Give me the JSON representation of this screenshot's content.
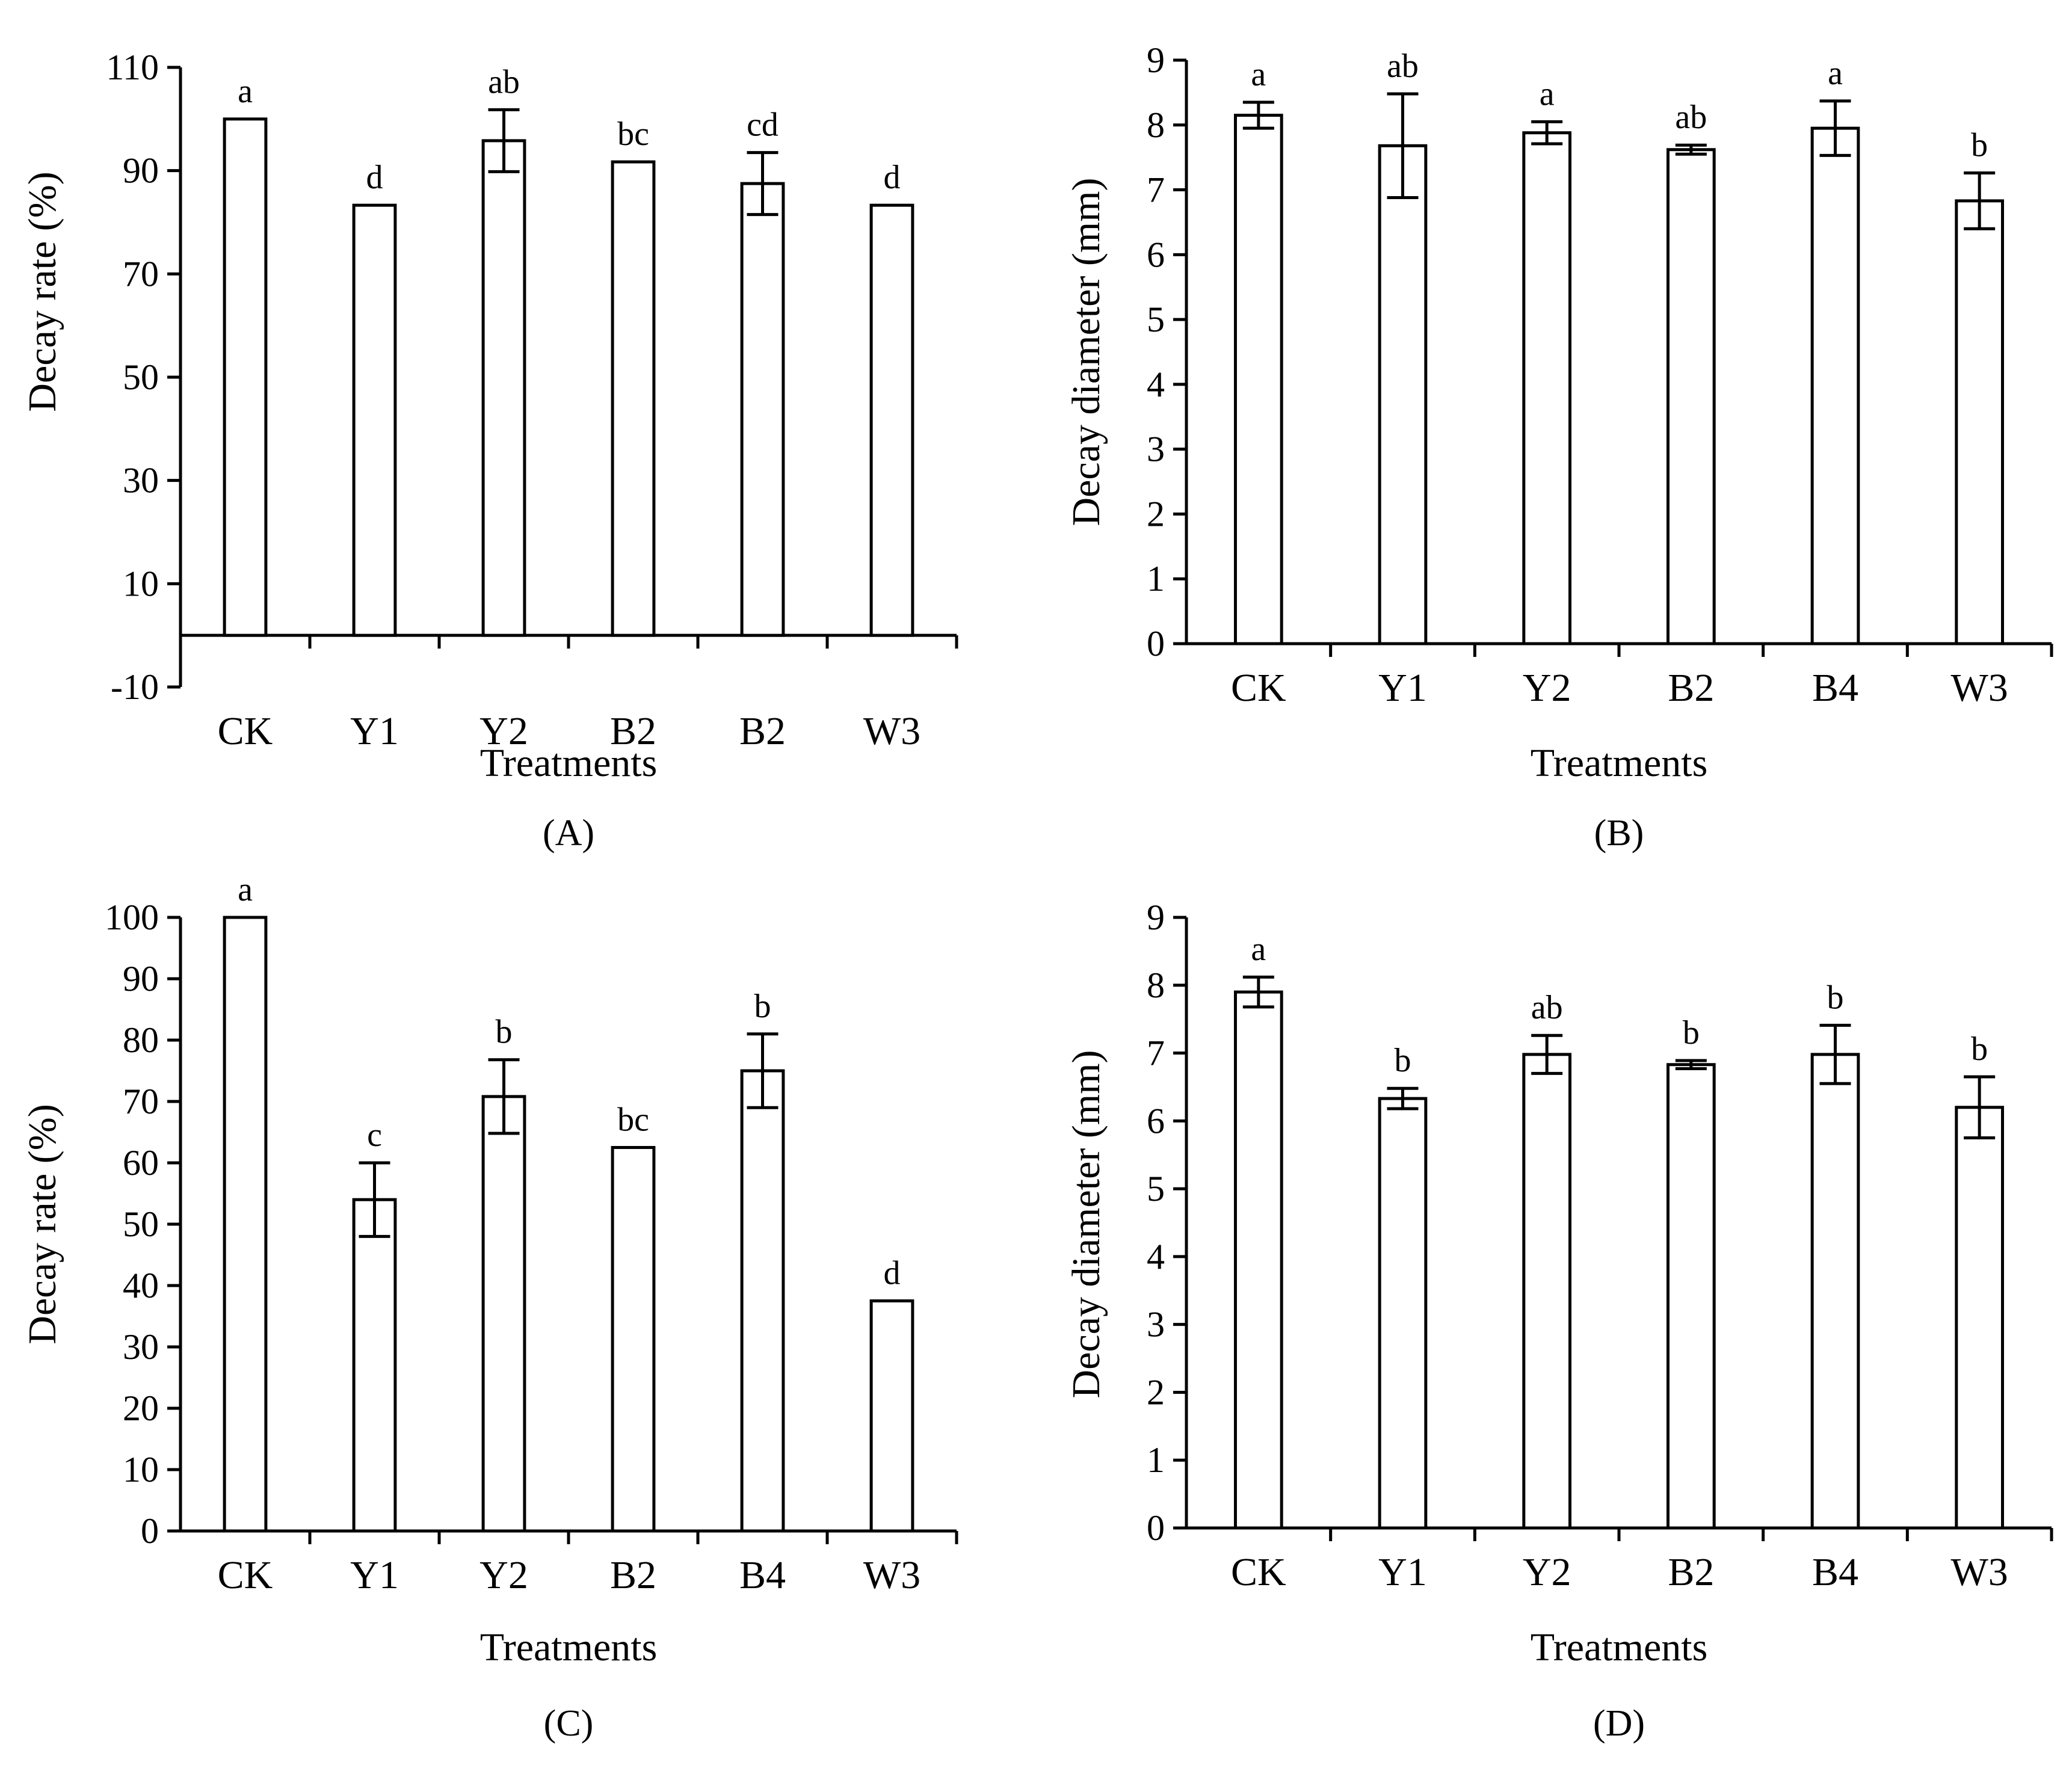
{
  "chart_data": [
    {
      "panel": "A",
      "panel_label": "(A)",
      "type": "bar",
      "title": "",
      "xlabel": "Treatments",
      "ylabel": "Decay rate (%)",
      "categories": [
        "CK",
        "Y1",
        "Y2",
        "B2",
        "B2",
        "W3"
      ],
      "series": [
        {
          "name": "Decay rate",
          "values": [
            100,
            83.3,
            95.8,
            91.7,
            87.5,
            83.3
          ]
        }
      ],
      "error": [
        0,
        0,
        6,
        0,
        6,
        0
      ],
      "significance": [
        "a",
        "d",
        "ab",
        "bc",
        "cd",
        "d"
      ],
      "ylim": [
        -10,
        110
      ],
      "yticks": [
        -10,
        10,
        30,
        50,
        70,
        90,
        110
      ],
      "baseline": 0,
      "grid": false
    },
    {
      "panel": "B",
      "panel_label": "(B)",
      "type": "bar",
      "title": "",
      "xlabel": "Treatments",
      "ylabel": "Decay diameter (mm)",
      "categories": [
        "CK",
        "Y1",
        "Y2",
        "B2",
        "B4",
        "W3"
      ],
      "series": [
        {
          "name": "Decay diameter",
          "values": [
            8.15,
            7.68,
            7.88,
            7.62,
            7.95,
            6.83
          ]
        }
      ],
      "error": [
        0.2,
        0.8,
        0.17,
        0.07,
        0.42,
        0.43
      ],
      "significance": [
        "a",
        "ab",
        "a",
        "ab",
        "a",
        "b"
      ],
      "ylim": [
        0,
        9
      ],
      "yticks": [
        0,
        1,
        2,
        3,
        4,
        5,
        6,
        7,
        8,
        9
      ],
      "baseline": 0,
      "grid": false
    },
    {
      "panel": "C",
      "panel_label": "(C)",
      "type": "bar",
      "title": "",
      "xlabel": "Treatments",
      "ylabel": "Decay rate (%)",
      "categories": [
        "CK",
        "Y1",
        "Y2",
        "B2",
        "B4",
        "W3"
      ],
      "series": [
        {
          "name": "Decay rate",
          "values": [
            100,
            54,
            70.8,
            62.5,
            75,
            37.5
          ]
        }
      ],
      "error": [
        0,
        6,
        6,
        0,
        6,
        0
      ],
      "significance": [
        "a",
        "c",
        "b",
        "bc",
        "b",
        "d"
      ],
      "ylim": [
        0,
        100
      ],
      "yticks": [
        0,
        10,
        20,
        30,
        40,
        50,
        60,
        70,
        80,
        90,
        100
      ],
      "baseline": 0,
      "grid": false
    },
    {
      "panel": "D",
      "panel_label": "(D)",
      "type": "bar",
      "title": "",
      "xlabel": "Treatments",
      "ylabel": "Decay diameter (mm)",
      "categories": [
        "CK",
        "Y1",
        "Y2",
        "B2",
        "B4",
        "W3"
      ],
      "series": [
        {
          "name": "Decay diameter",
          "values": [
            7.9,
            6.33,
            6.98,
            6.83,
            6.98,
            6.2
          ]
        }
      ],
      "error": [
        0.22,
        0.15,
        0.28,
        0.06,
        0.43,
        0.45
      ],
      "significance": [
        "a",
        "b",
        "ab",
        "b",
        "b",
        "b"
      ],
      "ylim": [
        0,
        9
      ],
      "yticks": [
        0,
        1,
        2,
        3,
        4,
        5,
        6,
        7,
        8,
        9
      ],
      "baseline": 0,
      "grid": false
    }
  ]
}
